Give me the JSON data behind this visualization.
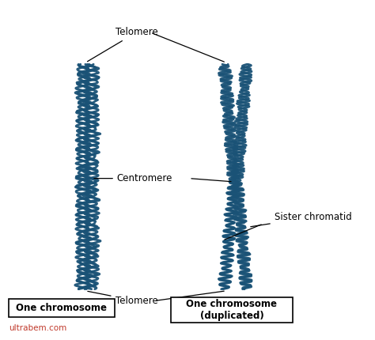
{
  "background_color": "#ffffff",
  "chromosome_color": "#1a5276",
  "text_color": "#000000",
  "watermark_color": "#c0392b",
  "labels": {
    "telomere_top": "Telomere",
    "telomere_bottom": "Telomere",
    "centromere": "Centromere",
    "sister_chromatid": "Sister chromatid",
    "box1": "One chromosome",
    "box2": "One chromosome\n(duplicated)",
    "watermark": "ultrabem.com"
  },
  "figsize": [
    4.74,
    4.3
  ],
  "dpi": 100
}
